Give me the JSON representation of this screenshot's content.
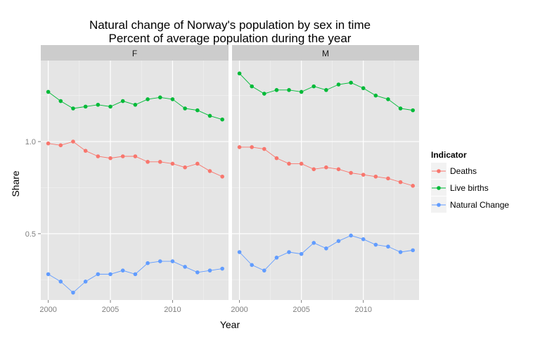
{
  "chart_data": {
    "type": "line",
    "title_lines": [
      "Natural change of Norway's population by sex in time",
      "Percent of average population during the year"
    ],
    "xlabel": "Year",
    "ylabel": "Share",
    "xlim": [
      1999.4,
      2014.5
    ],
    "ylim": [
      0.14,
      1.44
    ],
    "x_ticks": [
      2000,
      2005,
      2010
    ],
    "y_ticks": [
      0.5,
      1.0
    ],
    "y_tick_labels": [
      "0.5",
      "1.0"
    ],
    "grid": true,
    "legend": {
      "title": "Indicator",
      "placement": "right",
      "entries": [
        "Deaths",
        "Live births",
        "Natural Change"
      ]
    },
    "colors": {
      "Deaths": "#F8766D",
      "Live births": "#00BA38",
      "Natural Change": "#619CFF"
    },
    "x": [
      2000,
      2001,
      2002,
      2003,
      2004,
      2005,
      2006,
      2007,
      2008,
      2009,
      2010,
      2011,
      2012,
      2013,
      2014
    ],
    "panels": [
      {
        "label": "F",
        "series": [
          {
            "name": "Deaths",
            "values": [
              0.99,
              0.98,
              1.0,
              0.95,
              0.92,
              0.91,
              0.92,
              0.92,
              0.89,
              0.89,
              0.88,
              0.86,
              0.88,
              0.84,
              0.81
            ]
          },
          {
            "name": "Live births",
            "values": [
              1.27,
              1.22,
              1.18,
              1.19,
              1.2,
              1.19,
              1.22,
              1.2,
              1.23,
              1.24,
              1.23,
              1.18,
              1.17,
              1.14,
              1.12
            ]
          },
          {
            "name": "Natural Change",
            "values": [
              0.28,
              0.24,
              0.18,
              0.24,
              0.28,
              0.28,
              0.3,
              0.28,
              0.34,
              0.35,
              0.35,
              0.32,
              0.29,
              0.3,
              0.31
            ]
          }
        ]
      },
      {
        "label": "M",
        "series": [
          {
            "name": "Deaths",
            "values": [
              0.97,
              0.97,
              0.96,
              0.91,
              0.88,
              0.88,
              0.85,
              0.86,
              0.85,
              0.83,
              0.82,
              0.81,
              0.8,
              0.78,
              0.76
            ]
          },
          {
            "name": "Live births",
            "values": [
              1.37,
              1.3,
              1.26,
              1.28,
              1.28,
              1.27,
              1.3,
              1.28,
              1.31,
              1.32,
              1.29,
              1.25,
              1.23,
              1.18,
              1.17
            ]
          },
          {
            "name": "Natural Change",
            "values": [
              0.4,
              0.33,
              0.3,
              0.37,
              0.4,
              0.39,
              0.45,
              0.42,
              0.46,
              0.49,
              0.47,
              0.44,
              0.43,
              0.4,
              0.41
            ]
          }
        ]
      }
    ]
  }
}
